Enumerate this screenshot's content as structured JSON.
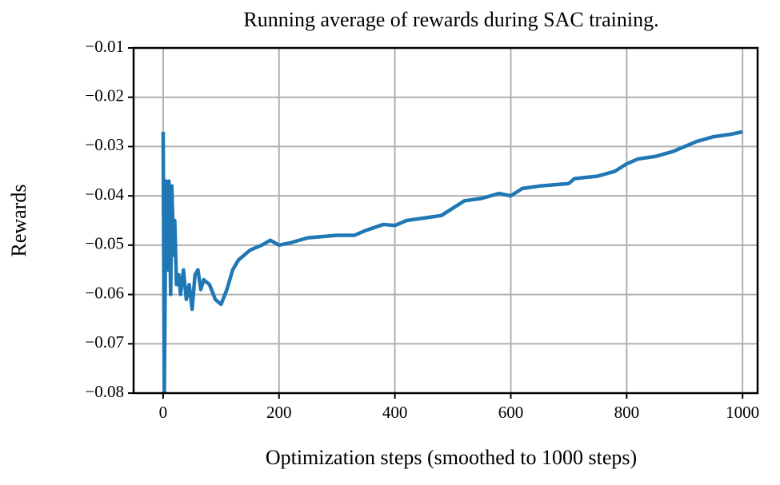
{
  "chart_data": {
    "type": "line",
    "title": "Running average of rewards during SAC training.",
    "xlabel": "Optimization steps (smoothed to 1000 steps)",
    "ylabel": "Rewards",
    "grid": true,
    "xlim": [
      -51,
      1026
    ],
    "ylim": [
      -0.08,
      -0.01
    ],
    "xticks": [
      0,
      200,
      400,
      600,
      800,
      1000
    ],
    "yticks": [
      {
        "value": -0.08,
        "label": "−0.08"
      },
      {
        "value": -0.07,
        "label": "−0.07"
      },
      {
        "value": -0.06,
        "label": "−0.06"
      },
      {
        "value": -0.05,
        "label": "−0.05"
      },
      {
        "value": -0.04,
        "label": "−0.04"
      },
      {
        "value": -0.03,
        "label": "−0.03"
      },
      {
        "value": -0.02,
        "label": "−0.02"
      },
      {
        "value": -0.01,
        "label": "−0.01"
      }
    ],
    "x": [
      0,
      2,
      5,
      8,
      10,
      13,
      15,
      18,
      20,
      23,
      27,
      30,
      35,
      40,
      45,
      50,
      55,
      60,
      65,
      70,
      80,
      90,
      100,
      110,
      120,
      130,
      150,
      170,
      185,
      200,
      220,
      250,
      300,
      330,
      350,
      380,
      400,
      420,
      450,
      480,
      500,
      520,
      550,
      580,
      600,
      620,
      650,
      700,
      710,
      750,
      780,
      800,
      820,
      850,
      880,
      900,
      920,
      950,
      980,
      1000
    ],
    "series": [
      {
        "name": "Rewards",
        "color": "#1f77b4",
        "values": [
          -0.027,
          -0.08,
          -0.037,
          -0.055,
          -0.037,
          -0.06,
          -0.038,
          -0.052,
          -0.045,
          -0.058,
          -0.056,
          -0.06,
          -0.055,
          -0.061,
          -0.058,
          -0.063,
          -0.056,
          -0.055,
          -0.059,
          -0.057,
          -0.058,
          -0.061,
          -0.062,
          -0.059,
          -0.055,
          -0.053,
          -0.051,
          -0.05,
          -0.049,
          -0.05,
          -0.0495,
          -0.0485,
          -0.048,
          -0.048,
          -0.047,
          -0.0458,
          -0.046,
          -0.045,
          -0.0445,
          -0.044,
          -0.0425,
          -0.041,
          -0.0405,
          -0.0395,
          -0.04,
          -0.0385,
          -0.038,
          -0.0375,
          -0.0365,
          -0.036,
          -0.035,
          -0.0335,
          -0.0325,
          -0.032,
          -0.031,
          -0.03,
          -0.029,
          -0.028,
          -0.0275,
          -0.027
        ]
      }
    ]
  }
}
